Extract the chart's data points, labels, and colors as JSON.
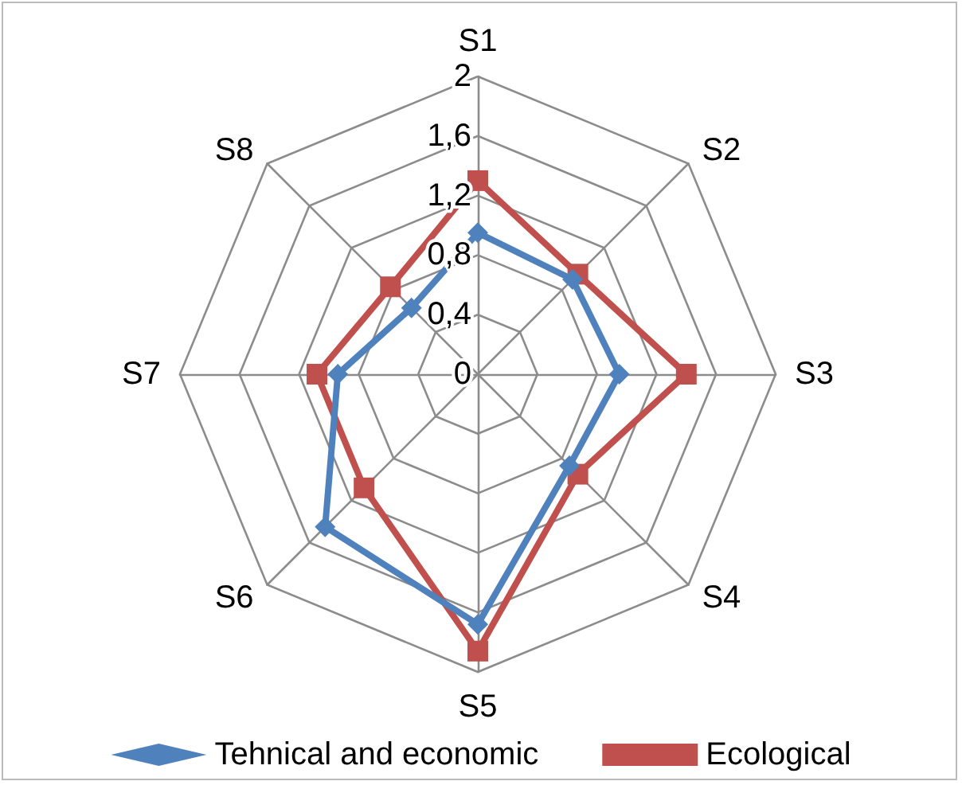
{
  "chart_data": {
    "type": "radar",
    "categories": [
      "S1",
      "S2",
      "S3",
      "S4",
      "S5",
      "S6",
      "S7",
      "S8"
    ],
    "series": [
      {
        "name": "Tehnical and economic",
        "color": "#4f81bd",
        "marker": "diamond",
        "values": [
          0.95,
          0.9,
          0.95,
          0.87,
          1.68,
          1.45,
          0.94,
          0.63
        ]
      },
      {
        "name": "Ecological",
        "color": "#c0504d",
        "marker": "square",
        "values": [
          1.3,
          0.95,
          1.4,
          0.95,
          1.86,
          1.08,
          1.08,
          0.83
        ]
      }
    ],
    "ylim": [
      0,
      2
    ],
    "yticks": [
      0,
      {
        "value": 0.4,
        "label": "0,4"
      },
      {
        "value": 0.8,
        "label": "0,8"
      },
      {
        "value": 1.2,
        "label": "1,2"
      },
      {
        "value": 1.6,
        "label": "1,6"
      },
      2
    ],
    "grid": true,
    "legend": "bottom"
  }
}
